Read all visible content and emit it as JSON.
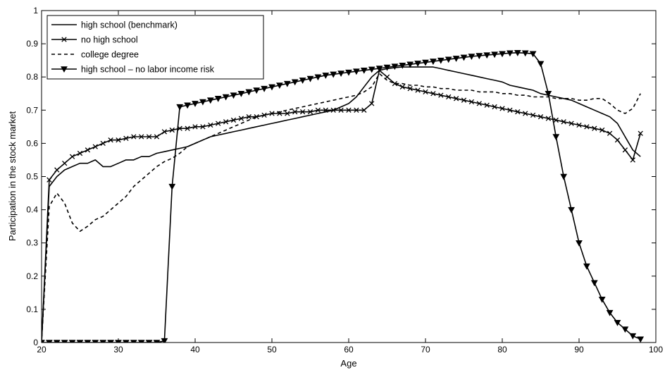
{
  "chart_data": {
    "type": "line",
    "title": "",
    "xlabel": "Age",
    "ylabel": "Participation in the stock market",
    "xlim": [
      20,
      100
    ],
    "ylim": [
      0,
      1
    ],
    "xticks": [
      "20",
      "30",
      "40",
      "50",
      "60",
      "70",
      "80",
      "90",
      "100"
    ],
    "yticks": [
      "0",
      "0.1",
      "0.2",
      "0.3",
      "0.4",
      "0.5",
      "0.6",
      "0.7",
      "0.8",
      "0.9",
      "1"
    ],
    "grid": false,
    "legend_position": "top-left",
    "series": [
      {
        "name": "high school (benchmark)",
        "style": "solid",
        "marker": "none",
        "color": "#000000",
        "x": [
          20,
          21,
          22,
          23,
          24,
          25,
          26,
          27,
          28,
          29,
          30,
          31,
          32,
          33,
          34,
          35,
          36,
          37,
          38,
          39,
          40,
          41,
          42,
          43,
          44,
          45,
          46,
          47,
          48,
          49,
          50,
          51,
          52,
          53,
          54,
          55,
          56,
          57,
          58,
          59,
          60,
          61,
          62,
          63,
          64,
          65,
          66,
          67,
          68,
          69,
          70,
          71,
          72,
          73,
          74,
          75,
          76,
          77,
          78,
          79,
          80,
          81,
          82,
          83,
          84,
          85,
          86,
          87,
          88,
          89,
          90,
          91,
          92,
          93,
          94,
          95,
          96,
          97,
          98
        ],
        "y": [
          0,
          0.47,
          0.5,
          0.52,
          0.53,
          0.54,
          0.54,
          0.55,
          0.53,
          0.53,
          0.54,
          0.55,
          0.55,
          0.56,
          0.56,
          0.57,
          0.575,
          0.58,
          0.585,
          0.59,
          0.6,
          0.61,
          0.62,
          0.625,
          0.63,
          0.635,
          0.64,
          0.645,
          0.65,
          0.655,
          0.66,
          0.665,
          0.67,
          0.675,
          0.68,
          0.685,
          0.69,
          0.695,
          0.7,
          0.71,
          0.72,
          0.74,
          0.77,
          0.8,
          0.82,
          0.825,
          0.828,
          0.83,
          0.83,
          0.83,
          0.83,
          0.83,
          0.825,
          0.82,
          0.815,
          0.81,
          0.805,
          0.8,
          0.795,
          0.79,
          0.785,
          0.775,
          0.77,
          0.765,
          0.76,
          0.75,
          0.745,
          0.74,
          0.735,
          0.73,
          0.72,
          0.71,
          0.7,
          0.69,
          0.68,
          0.66,
          0.62,
          0.58,
          0.56
        ]
      },
      {
        "name": "no high school",
        "style": "solid",
        "marker": "x",
        "color": "#000000",
        "x": [
          20,
          21,
          22,
          23,
          24,
          25,
          26,
          27,
          28,
          29,
          30,
          31,
          32,
          33,
          34,
          35,
          36,
          37,
          38,
          39,
          40,
          41,
          42,
          43,
          44,
          45,
          46,
          47,
          48,
          49,
          50,
          51,
          52,
          53,
          54,
          55,
          56,
          57,
          58,
          59,
          60,
          61,
          62,
          63,
          64,
          65,
          66,
          67,
          68,
          69,
          70,
          71,
          72,
          73,
          74,
          75,
          76,
          77,
          78,
          79,
          80,
          81,
          82,
          83,
          84,
          85,
          86,
          87,
          88,
          89,
          90,
          91,
          92,
          93,
          94,
          95,
          96,
          97,
          98
        ],
        "y": [
          0,
          0.49,
          0.52,
          0.54,
          0.56,
          0.57,
          0.58,
          0.59,
          0.6,
          0.61,
          0.61,
          0.615,
          0.62,
          0.62,
          0.62,
          0.62,
          0.635,
          0.64,
          0.645,
          0.645,
          0.65,
          0.65,
          0.655,
          0.66,
          0.665,
          0.67,
          0.675,
          0.68,
          0.68,
          0.685,
          0.69,
          0.69,
          0.69,
          0.695,
          0.695,
          0.695,
          0.7,
          0.7,
          0.7,
          0.7,
          0.7,
          0.7,
          0.7,
          0.72,
          0.82,
          0.8,
          0.78,
          0.77,
          0.765,
          0.76,
          0.755,
          0.75,
          0.745,
          0.74,
          0.735,
          0.73,
          0.725,
          0.72,
          0.715,
          0.71,
          0.705,
          0.7,
          0.695,
          0.69,
          0.685,
          0.68,
          0.675,
          0.67,
          0.665,
          0.66,
          0.655,
          0.65,
          0.645,
          0.64,
          0.63,
          0.61,
          0.58,
          0.55,
          0.63
        ]
      },
      {
        "name": "college degree",
        "style": "dashed",
        "marker": "none",
        "color": "#000000",
        "x": [
          20,
          21,
          22,
          23,
          24,
          25,
          26,
          27,
          28,
          29,
          30,
          31,
          32,
          33,
          34,
          35,
          36,
          37,
          38,
          39,
          40,
          41,
          42,
          43,
          44,
          45,
          46,
          47,
          48,
          49,
          50,
          51,
          52,
          53,
          54,
          55,
          56,
          57,
          58,
          59,
          60,
          61,
          62,
          63,
          64,
          65,
          66,
          67,
          68,
          69,
          70,
          71,
          72,
          73,
          74,
          75,
          76,
          77,
          78,
          79,
          80,
          81,
          82,
          83,
          84,
          85,
          86,
          87,
          88,
          89,
          90,
          91,
          92,
          93,
          94,
          95,
          96,
          97,
          98
        ],
        "y": [
          0,
          0.41,
          0.45,
          0.42,
          0.36,
          0.335,
          0.35,
          0.37,
          0.38,
          0.4,
          0.42,
          0.44,
          0.47,
          0.49,
          0.51,
          0.53,
          0.545,
          0.555,
          0.57,
          0.59,
          0.6,
          0.61,
          0.62,
          0.63,
          0.64,
          0.65,
          0.66,
          0.67,
          0.68,
          0.685,
          0.69,
          0.695,
          0.7,
          0.705,
          0.71,
          0.715,
          0.72,
          0.725,
          0.73,
          0.735,
          0.74,
          0.745,
          0.755,
          0.77,
          0.81,
          0.79,
          0.78,
          0.78,
          0.775,
          0.775,
          0.77,
          0.77,
          0.765,
          0.765,
          0.76,
          0.76,
          0.76,
          0.755,
          0.755,
          0.755,
          0.75,
          0.75,
          0.745,
          0.745,
          0.74,
          0.74,
          0.74,
          0.735,
          0.735,
          0.735,
          0.73,
          0.73,
          0.735,
          0.735,
          0.72,
          0.7,
          0.69,
          0.705,
          0.75
        ]
      },
      {
        "name": "high school – no labor income risk",
        "style": "solid",
        "marker": "triangle-down",
        "color": "#000000",
        "x": [
          20,
          21,
          22,
          23,
          24,
          25,
          26,
          27,
          28,
          29,
          30,
          31,
          32,
          33,
          34,
          35,
          36,
          37,
          38,
          39,
          40,
          41,
          42,
          43,
          44,
          45,
          46,
          47,
          48,
          49,
          50,
          51,
          52,
          53,
          54,
          55,
          56,
          57,
          58,
          59,
          60,
          61,
          62,
          63,
          64,
          65,
          66,
          67,
          68,
          69,
          70,
          71,
          72,
          73,
          74,
          75,
          76,
          77,
          78,
          79,
          80,
          81,
          82,
          83,
          84,
          85,
          86,
          87,
          88,
          89,
          90,
          91,
          92,
          93,
          94,
          95,
          96,
          97,
          98
        ],
        "y": [
          0,
          0,
          0,
          0,
          0,
          0,
          0,
          0,
          0,
          0,
          0,
          0,
          0,
          0,
          0,
          0,
          0.005,
          0.47,
          0.71,
          0.715,
          0.72,
          0.725,
          0.73,
          0.735,
          0.74,
          0.745,
          0.75,
          0.755,
          0.76,
          0.765,
          0.77,
          0.775,
          0.78,
          0.785,
          0.79,
          0.795,
          0.8,
          0.805,
          0.808,
          0.811,
          0.814,
          0.817,
          0.82,
          0.823,
          0.826,
          0.829,
          0.832,
          0.835,
          0.838,
          0.841,
          0.844,
          0.847,
          0.85,
          0.853,
          0.856,
          0.859,
          0.862,
          0.864,
          0.866,
          0.868,
          0.87,
          0.872,
          0.873,
          0.872,
          0.87,
          0.84,
          0.75,
          0.62,
          0.5,
          0.4,
          0.3,
          0.23,
          0.18,
          0.13,
          0.09,
          0.06,
          0.04,
          0.02,
          0.01
        ]
      }
    ]
  }
}
